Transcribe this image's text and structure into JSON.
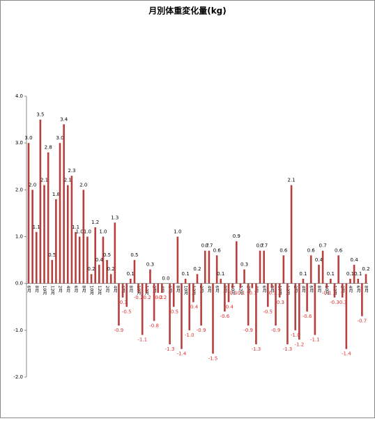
{
  "chart_data": {
    "type": "bar",
    "title": "月別体重変化量(kg)",
    "categories": [
      "6月",
      null,
      "8月",
      null,
      "10月",
      null,
      "12月",
      null,
      "2月",
      null,
      "4月",
      null,
      "6月",
      null,
      "8月",
      null,
      "10月",
      null,
      "12月",
      null,
      "2月",
      null,
      "4月",
      null,
      "6月",
      null,
      "8月",
      null,
      "10月",
      null,
      "12月",
      null,
      "2月",
      null,
      "4月",
      null,
      "6月",
      null,
      "8月",
      null,
      "10月",
      null,
      "12月",
      null,
      "2月",
      null,
      "4月",
      null,
      "6月",
      null,
      "8月",
      null,
      "10月",
      null,
      "12月",
      null,
      "2月",
      null,
      "4月",
      null,
      "6月",
      null,
      "8月",
      null,
      "10月",
      null,
      "12月",
      null,
      "2月",
      null,
      "4月",
      null,
      "6月",
      null,
      "8月",
      null,
      "10月",
      null,
      "12月",
      null,
      "2月",
      null,
      "4月",
      null,
      "6月",
      null,
      "8月"
    ],
    "values": [
      3.0,
      2.0,
      1.1,
      3.5,
      2.1,
      2.8,
      0.5,
      1.8,
      3.0,
      3.4,
      2.1,
      2.3,
      1.1,
      1.0,
      2.0,
      1.0,
      0.2,
      1.2,
      0.4,
      1.0,
      0.5,
      0.2,
      1.3,
      -0.9,
      -0.3,
      -0.5,
      0.1,
      0.5,
      -0.2,
      -1.1,
      -0.2,
      0.3,
      -0.8,
      -0.2,
      -0.2,
      0.0,
      -1.3,
      -0.5,
      1.0,
      -1.4,
      0.1,
      -1.0,
      -0.4,
      0.2,
      -0.9,
      0.7,
      0.7,
      -1.5,
      0.6,
      0.1,
      -0.6,
      -0.4,
      -0.1,
      0.9,
      -0.1,
      0.3,
      -0.9,
      -0.1,
      -1.3,
      0.7,
      0.7,
      -0.5,
      -0.1,
      -0.9,
      -0.3,
      0.6,
      -1.3,
      2.1,
      -1.0,
      -1.2,
      0.1,
      -0.6,
      0.6,
      -1.1,
      0.4,
      0.7,
      -0.1,
      0.1,
      -0.3,
      0.6,
      -0.3,
      -1.4,
      0.1,
      0.4,
      0.1,
      -0.7,
      0.2
    ],
    "value_labels": [
      "3.0",
      "2.0",
      "1.1",
      "3.5",
      "2.1",
      "2.8",
      "0.5",
      "1.8",
      "3.0",
      "3.4",
      "2.1",
      "2.3",
      "1.1",
      "1.0",
      "2.0",
      "1.0",
      "0.2",
      "1.2",
      "0.4",
      "1.0",
      "0.5",
      "0.2",
      "1.3",
      "-0.9",
      "-0.3",
      "-0.5",
      "0.1",
      "0.5",
      "-0.2",
      "-1.1",
      "-0.2",
      "0.3",
      "-0.8",
      "-0.2",
      "-0.2",
      "0.0",
      "-1.3",
      "-0.5",
      "1.0",
      "-1.4",
      "0.1",
      "-1.0",
      "-0.4",
      "0.2",
      "-0.9",
      "0.7",
      "0.7",
      "-1.5",
      "0.6",
      "0.1",
      "-0.6",
      "-0.4",
      "-0.1",
      "0.9",
      "-0.1",
      "0.3",
      "-0.9",
      "-0.1",
      "-1.3",
      "0.7",
      "0.7",
      "-0.5",
      "-0.1",
      "-0.9",
      "-0.3",
      "0.6",
      "-1.3",
      "2.1",
      "-1.0",
      "-1.2",
      "0.1",
      "-0.6",
      "0.6",
      "-1.1",
      "0.4",
      "0.7",
      "-0.1",
      "0.1",
      "-0.3",
      "0.6",
      "-0.3",
      "-1.4",
      "0.1",
      "0.4",
      "0.1",
      "-0.7",
      "0.2"
    ],
    "color": "#b5403d",
    "negative_label_color": "#e03030",
    "ylim": [
      -2,
      4
    ],
    "yticks": [
      {
        "value": -2,
        "label": "-2.0"
      },
      {
        "value": -1,
        "label": "-1.0"
      },
      {
        "value": 0,
        "label": "0.0"
      },
      {
        "value": 1,
        "label": "1.0"
      },
      {
        "value": 2,
        "label": "2.0"
      },
      {
        "value": 3,
        "label": "3.0"
      },
      {
        "value": 4,
        "label": "4.0"
      }
    ],
    "grid": false
  }
}
